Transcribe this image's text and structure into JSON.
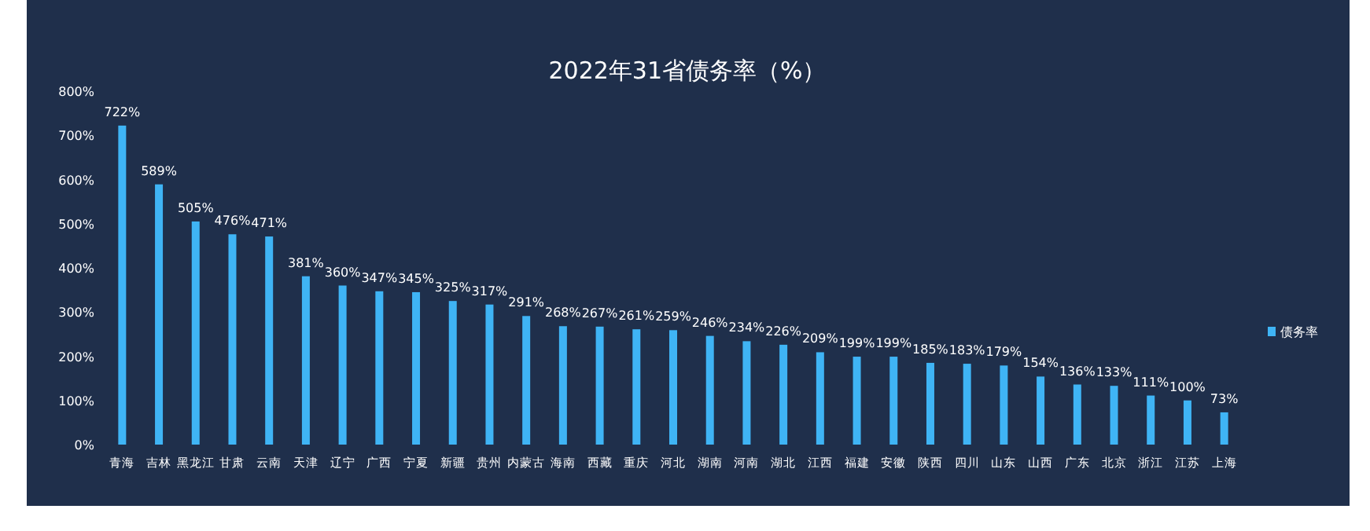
{
  "chart_data": {
    "type": "bar",
    "title": "2022年31省债务率（%）",
    "categories": [
      "青海",
      "吉林",
      "黑龙江",
      "甘肃",
      "云南",
      "天津",
      "辽宁",
      "广西",
      "宁夏",
      "新疆",
      "贵州",
      "内蒙古",
      "海南",
      "西藏",
      "重庆",
      "河北",
      "湖南",
      "河南",
      "湖北",
      "江西",
      "福建",
      "安徽",
      "陕西",
      "四川",
      "山东",
      "山西",
      "广东",
      "北京",
      "浙江",
      "江苏",
      "上海"
    ],
    "series": [
      {
        "name": "债务率",
        "color": "#3fb4f5",
        "values": [
          722,
          589,
          505,
          476,
          471,
          381,
          360,
          347,
          345,
          325,
          317,
          291,
          268,
          267,
          261,
          259,
          246,
          234,
          226,
          209,
          199,
          199,
          185,
          183,
          179,
          154,
          136,
          133,
          111,
          100,
          73
        ],
        "value_labels": [
          "722%",
          "589%",
          "505%",
          "476%",
          "471%",
          "381%",
          "360%",
          "347%",
          "345%",
          "325%",
          "317%",
          "291%",
          "268%",
          "267%",
          "261%",
          "259%",
          "246%",
          "234%",
          "226%",
          "209%",
          "199%",
          "199%",
          "185%",
          "183%",
          "179%",
          "154%",
          "136%",
          "133%",
          "111%",
          "100%",
          "73%"
        ]
      }
    ],
    "ylim": [
      0,
      800
    ],
    "yticks": [
      {
        "value": 0,
        "label": "0%"
      },
      {
        "value": 100,
        "label": "100%"
      },
      {
        "value": 200,
        "label": "200%"
      },
      {
        "value": 300,
        "label": "300%"
      },
      {
        "value": 400,
        "label": "400%"
      },
      {
        "value": 500,
        "label": "500%"
      },
      {
        "value": 600,
        "label": "600%"
      },
      {
        "value": 700,
        "label": "700%"
      },
      {
        "value": 800,
        "label": "800%"
      }
    ],
    "grid": false,
    "legend": "right"
  }
}
